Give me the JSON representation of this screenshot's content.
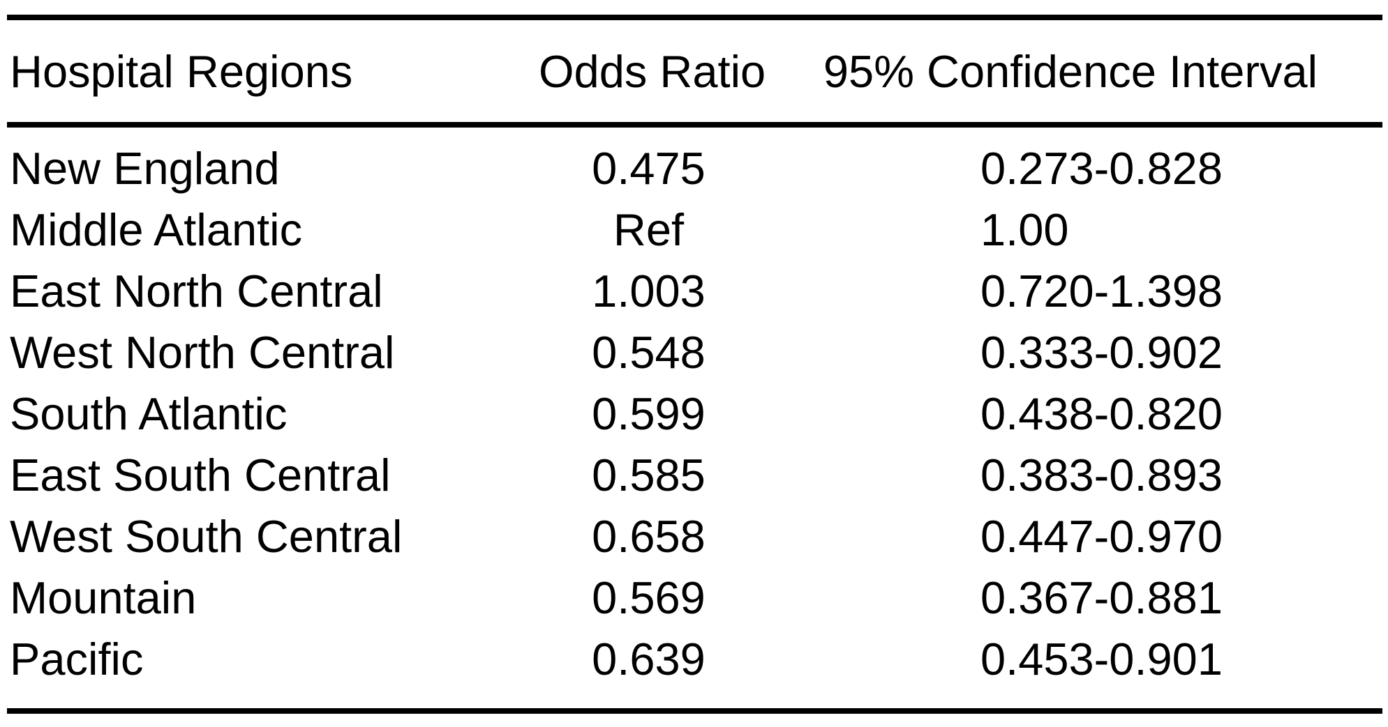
{
  "table": {
    "columns": [
      "Hospital Regions",
      "Odds Ratio",
      "95% Confidence Interval"
    ],
    "rows": [
      {
        "region": "New England",
        "odds_ratio": "0.475",
        "ci": "0.273-0.828"
      },
      {
        "region": "Middle Atlantic",
        "odds_ratio": "Ref",
        "ci": "1.00"
      },
      {
        "region": "East North Central",
        "odds_ratio": "1.003",
        "ci": "0.720-1.398"
      },
      {
        "region": "West North Central",
        "odds_ratio": "0.548",
        "ci": "0.333-0.902"
      },
      {
        "region": "South Atlantic",
        "odds_ratio": "0.599",
        "ci": "0.438-0.820"
      },
      {
        "region": "East South Central",
        "odds_ratio": "0.585",
        "ci": "0.383-0.893"
      },
      {
        "region": "West South Central",
        "odds_ratio": "0.658",
        "ci": "0.447-0.970"
      },
      {
        "region": "Mountain",
        "odds_ratio": "0.569",
        "ci": "0.367-0.881"
      },
      {
        "region": "Pacific",
        "odds_ratio": "0.639",
        "ci": "0.453-0.901"
      }
    ]
  },
  "colors": {
    "text": "#000000",
    "background": "#ffffff",
    "rule": "#000000"
  },
  "chart_data": {
    "type": "table",
    "title": "",
    "columns": [
      "Hospital Regions",
      "Odds Ratio",
      "95% Confidence Interval"
    ],
    "rows": [
      [
        "New England",
        "0.475",
        "0.273-0.828"
      ],
      [
        "Middle Atlantic",
        "Ref",
        "1.00"
      ],
      [
        "East North Central",
        "1.003",
        "0.720-1.398"
      ],
      [
        "West North Central",
        "0.548",
        "0.333-0.902"
      ],
      [
        "South Atlantic",
        "0.599",
        "0.438-0.820"
      ],
      [
        "East South Central",
        "0.585",
        "0.383-0.893"
      ],
      [
        "West South Central",
        "0.658",
        "0.447-0.970"
      ],
      [
        "Mountain",
        "0.569",
        "0.367-0.881"
      ],
      [
        "Pacific",
        "0.639",
        "0.453-0.901"
      ]
    ]
  }
}
